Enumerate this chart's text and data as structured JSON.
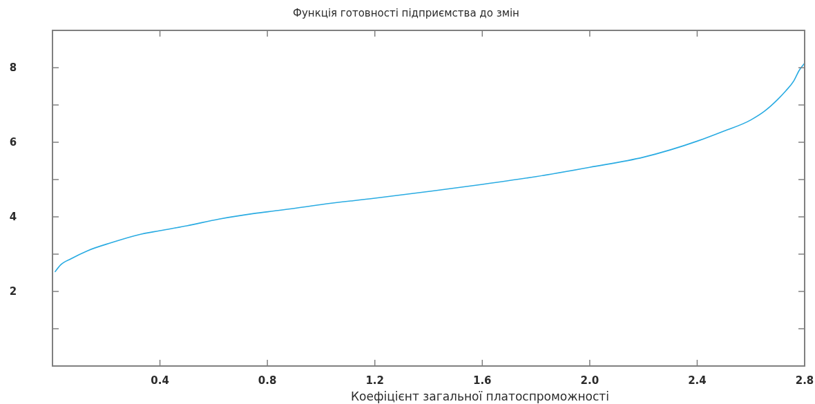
{
  "chart_data": {
    "type": "line",
    "title": "Функція готовності підприємства до змін",
    "xlabel": "Коефіцієнт загальної платоспроможності",
    "x": [
      0.01,
      0.03,
      0.07,
      0.13,
      0.22,
      0.32,
      0.4,
      0.5,
      0.62,
      0.75,
      0.84,
      1.0,
      1.2,
      1.4,
      1.6,
      1.8,
      2.0,
      2.2,
      2.4,
      2.5,
      2.6,
      2.65,
      2.7,
      2.73,
      2.76,
      2.78,
      2.8
    ],
    "values": [
      2.53,
      2.71,
      2.88,
      3.09,
      3.31,
      3.52,
      3.63,
      3.76,
      3.94,
      4.09,
      4.17,
      4.33,
      4.5,
      4.68,
      4.87,
      5.08,
      5.33,
      5.6,
      6.03,
      6.3,
      6.6,
      6.83,
      7.15,
      7.38,
      7.65,
      7.93,
      8.12
    ],
    "color": "#29abe2",
    "line_style": "solid",
    "xlim": [
      0,
      2.8
    ],
    "ylim": [
      0,
      9
    ],
    "xticks": [
      0.4,
      0.8,
      1.2,
      1.6,
      {
        "value": 2,
        "label": "2.0"
      },
      2.4,
      2.8
    ],
    "yticks": [
      {
        "value": 1,
        "label": null
      },
      2,
      {
        "value": 3,
        "label": null
      },
      4,
      {
        "value": 5,
        "label": null
      },
      6,
      {
        "value": 7,
        "label": null
      },
      8
    ]
  }
}
